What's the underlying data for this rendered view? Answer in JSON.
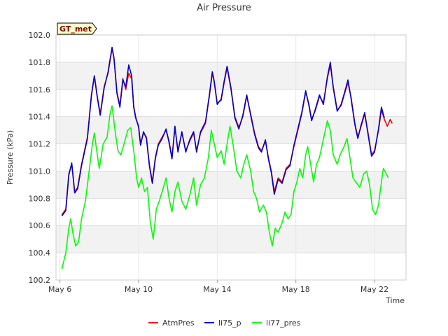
{
  "chart_data": {
    "type": "line",
    "title": "Air Pressure",
    "xlabel": "Time",
    "ylabel": "Pressure (kPa)",
    "ylim": [
      100.2,
      102.0
    ],
    "xlim": [
      5.8,
      23.6
    ],
    "yticks": [
      100.2,
      100.4,
      100.6,
      100.8,
      101.0,
      101.2,
      101.4,
      101.6,
      101.8,
      102.0
    ],
    "ytick_labels": [
      "100.2",
      "100.4",
      "100.6",
      "100.8",
      "101.0",
      "101.2",
      "101.4",
      "101.6",
      "101.8",
      "102.0"
    ],
    "xticks": [
      6,
      10,
      14,
      18,
      22
    ],
    "xtick_labels": [
      "May 6",
      "May 10",
      "May 14",
      "May 18",
      "May 22"
    ],
    "grid": true,
    "legend_position": "bottom-center",
    "badge": "GT_met",
    "x_units": "day of May",
    "series": [
      {
        "name": "AtmPres",
        "color": "#ff0000",
        "points": [
          [
            6.1,
            100.68
          ],
          [
            6.3,
            100.72
          ],
          [
            6.45,
            100.98
          ],
          [
            6.6,
            101.05
          ],
          [
            6.75,
            100.85
          ],
          [
            6.9,
            100.88
          ],
          [
            7.1,
            101.05
          ],
          [
            7.4,
            101.25
          ],
          [
            7.6,
            101.55
          ],
          [
            7.75,
            101.7
          ],
          [
            7.9,
            101.55
          ],
          [
            8.05,
            101.42
          ],
          [
            8.25,
            101.62
          ],
          [
            8.45,
            101.72
          ],
          [
            8.65,
            101.9
          ],
          [
            8.75,
            101.82
          ],
          [
            8.9,
            101.58
          ],
          [
            9.05,
            101.48
          ],
          [
            9.2,
            101.68
          ],
          [
            9.35,
            101.6
          ],
          [
            9.5,
            101.72
          ],
          [
            9.65,
            101.68
          ],
          [
            9.75,
            101.48
          ],
          [
            9.85,
            101.4
          ],
          [
            10.0,
            101.32
          ],
          [
            10.1,
            101.2
          ],
          [
            10.25,
            101.28
          ],
          [
            10.4,
            101.25
          ],
          [
            10.55,
            101.05
          ],
          [
            10.7,
            100.92
          ],
          [
            10.85,
            101.1
          ],
          [
            11.0,
            101.2
          ],
          [
            11.2,
            101.25
          ],
          [
            11.4,
            101.3
          ],
          [
            11.55,
            101.22
          ],
          [
            11.7,
            101.1
          ],
          [
            11.85,
            101.32
          ],
          [
            12.0,
            101.15
          ],
          [
            12.2,
            101.28
          ],
          [
            12.4,
            101.15
          ],
          [
            12.6,
            101.22
          ],
          [
            12.8,
            101.28
          ],
          [
            12.95,
            101.15
          ],
          [
            13.15,
            101.28
          ],
          [
            13.4,
            101.35
          ],
          [
            13.6,
            101.55
          ],
          [
            13.75,
            101.72
          ],
          [
            13.85,
            101.65
          ],
          [
            14.0,
            101.5
          ],
          [
            14.2,
            101.52
          ],
          [
            14.35,
            101.65
          ],
          [
            14.5,
            101.76
          ],
          [
            14.7,
            101.6
          ],
          [
            14.9,
            101.4
          ],
          [
            15.1,
            101.32
          ],
          [
            15.3,
            101.4
          ],
          [
            15.5,
            101.55
          ],
          [
            15.7,
            101.42
          ],
          [
            15.9,
            101.28
          ],
          [
            16.1,
            101.18
          ],
          [
            16.25,
            101.15
          ],
          [
            16.45,
            101.22
          ],
          [
            16.6,
            101.1
          ],
          [
            16.75,
            101.0
          ],
          [
            16.9,
            100.85
          ],
          [
            17.1,
            100.95
          ],
          [
            17.3,
            100.92
          ],
          [
            17.5,
            101.02
          ],
          [
            17.7,
            101.05
          ],
          [
            17.9,
            101.18
          ],
          [
            18.1,
            101.3
          ],
          [
            18.3,
            101.42
          ],
          [
            18.5,
            101.58
          ],
          [
            18.65,
            101.5
          ],
          [
            18.8,
            101.38
          ],
          [
            19.0,
            101.45
          ],
          [
            19.2,
            101.55
          ],
          [
            19.4,
            101.5
          ],
          [
            19.6,
            101.68
          ],
          [
            19.75,
            101.78
          ],
          [
            19.9,
            101.62
          ],
          [
            20.1,
            101.45
          ],
          [
            20.3,
            101.48
          ],
          [
            20.5,
            101.58
          ],
          [
            20.65,
            101.65
          ],
          [
            20.8,
            101.55
          ],
          [
            21.0,
            101.35
          ],
          [
            21.15,
            101.25
          ],
          [
            21.3,
            101.32
          ],
          [
            21.5,
            101.42
          ],
          [
            21.65,
            101.3
          ],
          [
            21.85,
            101.12
          ],
          [
            22.0,
            101.15
          ],
          [
            22.2,
            101.3
          ],
          [
            22.35,
            101.45
          ],
          [
            22.5,
            101.38
          ],
          [
            22.65,
            101.33
          ],
          [
            22.8,
            101.38
          ],
          [
            22.9,
            101.35
          ]
        ]
      },
      {
        "name": "li75_p",
        "color": "#0000cc",
        "points": [
          [
            6.1,
            100.67
          ],
          [
            6.3,
            100.71
          ],
          [
            6.45,
            100.97
          ],
          [
            6.6,
            101.06
          ],
          [
            6.75,
            100.84
          ],
          [
            6.9,
            100.87
          ],
          [
            7.1,
            101.04
          ],
          [
            7.4,
            101.24
          ],
          [
            7.6,
            101.56
          ],
          [
            7.75,
            101.7
          ],
          [
            7.9,
            101.54
          ],
          [
            8.05,
            101.41
          ],
          [
            8.25,
            101.61
          ],
          [
            8.45,
            101.73
          ],
          [
            8.65,
            101.91
          ],
          [
            8.75,
            101.83
          ],
          [
            8.9,
            101.57
          ],
          [
            9.05,
            101.47
          ],
          [
            9.2,
            101.67
          ],
          [
            9.35,
            101.62
          ],
          [
            9.5,
            101.78
          ],
          [
            9.65,
            101.7
          ],
          [
            9.75,
            101.47
          ],
          [
            9.85,
            101.39
          ],
          [
            10.0,
            101.33
          ],
          [
            10.1,
            101.19
          ],
          [
            10.25,
            101.29
          ],
          [
            10.4,
            101.24
          ],
          [
            10.55,
            101.04
          ],
          [
            10.7,
            100.91
          ],
          [
            10.85,
            101.09
          ],
          [
            11.0,
            101.19
          ],
          [
            11.2,
            101.24
          ],
          [
            11.4,
            101.31
          ],
          [
            11.55,
            101.21
          ],
          [
            11.7,
            101.09
          ],
          [
            11.85,
            101.33
          ],
          [
            12.0,
            101.14
          ],
          [
            12.2,
            101.29
          ],
          [
            12.4,
            101.14
          ],
          [
            12.6,
            101.23
          ],
          [
            12.8,
            101.29
          ],
          [
            12.95,
            101.14
          ],
          [
            13.15,
            101.29
          ],
          [
            13.4,
            101.36
          ],
          [
            13.6,
            101.56
          ],
          [
            13.75,
            101.73
          ],
          [
            13.85,
            101.66
          ],
          [
            14.0,
            101.49
          ],
          [
            14.2,
            101.53
          ],
          [
            14.35,
            101.66
          ],
          [
            14.5,
            101.77
          ],
          [
            14.7,
            101.61
          ],
          [
            14.9,
            101.39
          ],
          [
            15.1,
            101.31
          ],
          [
            15.3,
            101.41
          ],
          [
            15.5,
            101.56
          ],
          [
            15.7,
            101.41
          ],
          [
            15.9,
            101.27
          ],
          [
            16.1,
            101.17
          ],
          [
            16.25,
            101.14
          ],
          [
            16.45,
            101.23
          ],
          [
            16.6,
            101.09
          ],
          [
            16.75,
            100.99
          ],
          [
            16.9,
            100.83
          ],
          [
            17.1,
            100.94
          ],
          [
            17.3,
            100.91
          ],
          [
            17.5,
            101.01
          ],
          [
            17.7,
            101.04
          ],
          [
            17.9,
            101.19
          ],
          [
            18.1,
            101.31
          ],
          [
            18.3,
            101.43
          ],
          [
            18.5,
            101.59
          ],
          [
            18.65,
            101.49
          ],
          [
            18.8,
            101.37
          ],
          [
            19.0,
            101.46
          ],
          [
            19.2,
            101.56
          ],
          [
            19.4,
            101.49
          ],
          [
            19.6,
            101.69
          ],
          [
            19.75,
            101.8
          ],
          [
            19.9,
            101.61
          ],
          [
            20.1,
            101.44
          ],
          [
            20.3,
            101.49
          ],
          [
            20.5,
            101.59
          ],
          [
            20.65,
            101.67
          ],
          [
            20.8,
            101.54
          ],
          [
            21.0,
            101.34
          ],
          [
            21.15,
            101.24
          ],
          [
            21.3,
            101.33
          ],
          [
            21.5,
            101.43
          ],
          [
            21.65,
            101.29
          ],
          [
            21.85,
            101.11
          ],
          [
            22.0,
            101.14
          ],
          [
            22.2,
            101.31
          ],
          [
            22.35,
            101.47
          ],
          [
            22.5,
            101.39
          ]
        ]
      },
      {
        "name": "li77_pres",
        "color": "#00ff00",
        "points": [
          [
            6.1,
            100.28
          ],
          [
            6.3,
            100.4
          ],
          [
            6.45,
            100.58
          ],
          [
            6.55,
            100.65
          ],
          [
            6.65,
            100.55
          ],
          [
            6.8,
            100.45
          ],
          [
            6.95,
            100.48
          ],
          [
            7.1,
            100.65
          ],
          [
            7.3,
            100.78
          ],
          [
            7.5,
            101.02
          ],
          [
            7.65,
            101.2
          ],
          [
            7.75,
            101.28
          ],
          [
            7.9,
            101.12
          ],
          [
            8.0,
            101.02
          ],
          [
            8.2,
            101.2
          ],
          [
            8.4,
            101.25
          ],
          [
            8.55,
            101.42
          ],
          [
            8.65,
            101.48
          ],
          [
            8.8,
            101.3
          ],
          [
            8.95,
            101.15
          ],
          [
            9.1,
            101.12
          ],
          [
            9.3,
            101.22
          ],
          [
            9.45,
            101.3
          ],
          [
            9.6,
            101.32
          ],
          [
            9.75,
            101.15
          ],
          [
            9.9,
            100.95
          ],
          [
            10.0,
            100.88
          ],
          [
            10.15,
            100.95
          ],
          [
            10.3,
            100.85
          ],
          [
            10.45,
            100.88
          ],
          [
            10.6,
            100.62
          ],
          [
            10.75,
            100.5
          ],
          [
            10.9,
            100.72
          ],
          [
            11.05,
            100.78
          ],
          [
            11.2,
            100.85
          ],
          [
            11.4,
            100.95
          ],
          [
            11.55,
            100.8
          ],
          [
            11.7,
            100.7
          ],
          [
            11.85,
            100.85
          ],
          [
            12.0,
            100.92
          ],
          [
            12.2,
            100.78
          ],
          [
            12.4,
            100.72
          ],
          [
            12.6,
            100.82
          ],
          [
            12.8,
            100.95
          ],
          [
            12.95,
            100.75
          ],
          [
            13.15,
            100.9
          ],
          [
            13.35,
            100.95
          ],
          [
            13.55,
            101.1
          ],
          [
            13.7,
            101.3
          ],
          [
            13.85,
            101.2
          ],
          [
            14.0,
            101.1
          ],
          [
            14.2,
            101.15
          ],
          [
            14.35,
            101.05
          ],
          [
            14.5,
            101.2
          ],
          [
            14.65,
            101.33
          ],
          [
            14.8,
            101.2
          ],
          [
            15.0,
            101.0
          ],
          [
            15.2,
            100.95
          ],
          [
            15.35,
            101.05
          ],
          [
            15.5,
            101.12
          ],
          [
            15.7,
            101.0
          ],
          [
            15.85,
            100.85
          ],
          [
            16.0,
            100.8
          ],
          [
            16.15,
            100.7
          ],
          [
            16.35,
            100.75
          ],
          [
            16.5,
            100.7
          ],
          [
            16.65,
            100.55
          ],
          [
            16.8,
            100.45
          ],
          [
            16.95,
            100.58
          ],
          [
            17.1,
            100.55
          ],
          [
            17.3,
            100.62
          ],
          [
            17.45,
            100.7
          ],
          [
            17.6,
            100.65
          ],
          [
            17.75,
            100.68
          ],
          [
            17.9,
            100.85
          ],
          [
            18.05,
            100.92
          ],
          [
            18.2,
            101.02
          ],
          [
            18.35,
            100.95
          ],
          [
            18.5,
            101.12
          ],
          [
            18.6,
            101.18
          ],
          [
            18.75,
            101.05
          ],
          [
            18.9,
            100.92
          ],
          [
            19.05,
            101.05
          ],
          [
            19.2,
            101.1
          ],
          [
            19.35,
            101.2
          ],
          [
            19.5,
            101.3
          ],
          [
            19.6,
            101.37
          ],
          [
            19.75,
            101.3
          ],
          [
            19.9,
            101.12
          ],
          [
            20.1,
            101.05
          ],
          [
            20.25,
            101.12
          ],
          [
            20.45,
            101.18
          ],
          [
            20.6,
            101.24
          ],
          [
            20.75,
            101.1
          ],
          [
            20.9,
            100.95
          ],
          [
            21.05,
            100.92
          ],
          [
            21.25,
            100.88
          ],
          [
            21.45,
            100.98
          ],
          [
            21.6,
            101.0
          ],
          [
            21.75,
            100.9
          ],
          [
            21.9,
            100.72
          ],
          [
            22.05,
            100.68
          ],
          [
            22.2,
            100.75
          ],
          [
            22.35,
            100.92
          ],
          [
            22.45,
            101.02
          ],
          [
            22.6,
            100.98
          ],
          [
            22.7,
            100.95
          ]
        ]
      }
    ]
  }
}
